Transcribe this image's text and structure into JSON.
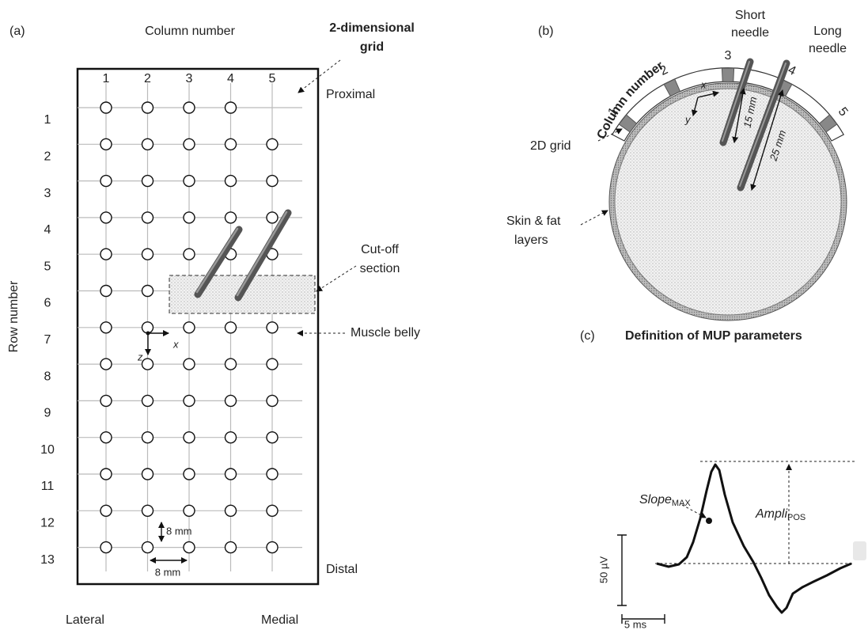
{
  "panel_a": {
    "label": "(a)",
    "column_axis": "Column number",
    "columns": [
      "1",
      "2",
      "3",
      "4",
      "5"
    ],
    "row_axis": "Row number",
    "rows": [
      "1",
      "2",
      "3",
      "4",
      "5",
      "6",
      "7",
      "8",
      "9",
      "10",
      "11",
      "12",
      "13"
    ],
    "grid_label": [
      "2-dimensional",
      "grid"
    ],
    "proximal": "Proximal",
    "distal": "Distal",
    "lateral": "Lateral",
    "medial": "Medial",
    "cutoff": [
      "Cut-off",
      "section"
    ],
    "muscle_belly": "Muscle belly",
    "axis_x": "x",
    "axis_z": "z",
    "spacing_vertical": "8 mm",
    "spacing_horizontal": "8 mm"
  },
  "panel_b": {
    "label": "(b)",
    "column_axis": "Column number",
    "columns": [
      "1",
      "2",
      "3",
      "4",
      "5"
    ],
    "short_needle": [
      "Short",
      "needle"
    ],
    "long_needle": [
      "Long",
      "needle"
    ],
    "grid_label": "2D grid",
    "skin": [
      "Skin & fat",
      "layers"
    ],
    "depth_short": "15 mm",
    "depth_long": "25 mm",
    "axis_x": "x",
    "axis_y": "y"
  },
  "panel_c": {
    "label": "(c)",
    "title": "Definition of MUP parameters",
    "slope": "Slope",
    "slope_sub": "MAX",
    "ampli": "Ampli",
    "ampli_sub": "POS",
    "scale_vertical": "50 µV",
    "scale_horizontal": "5 ms"
  }
}
